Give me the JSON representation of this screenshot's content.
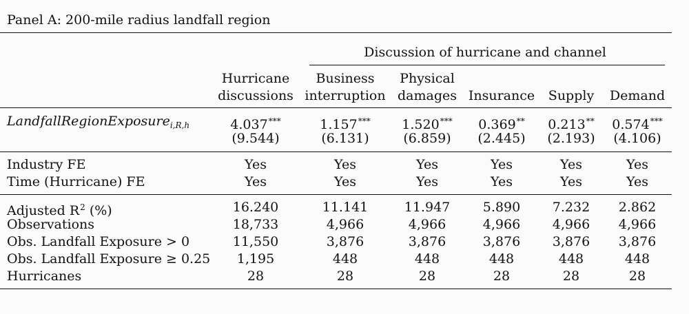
{
  "panel_title": "Panel A: 200-mile radius landfall region",
  "group_header": "Discussion of hurricane and channel",
  "columns": [
    {
      "line1": "Hurricane",
      "line2": "discussions"
    },
    {
      "line1": "Business",
      "line2": "interruption"
    },
    {
      "line1": "Physical",
      "line2": "damages"
    },
    {
      "line1": "",
      "line2": "Insurance"
    },
    {
      "line1": "",
      "line2": "Supply"
    },
    {
      "line1": "",
      "line2": "Demand"
    }
  ],
  "exposure_row": {
    "label_main": "LandfallRegionExposure",
    "label_sub": "i,R,h",
    "coefficients": [
      {
        "value": "4.037",
        "stars": "***"
      },
      {
        "value": "1.157",
        "stars": "***"
      },
      {
        "value": "1.520",
        "stars": "***"
      },
      {
        "value": "0.369",
        "stars": "**"
      },
      {
        "value": "0.213",
        "stars": "**"
      },
      {
        "value": "0.574",
        "stars": "***"
      }
    ],
    "tstats": [
      "(9.544)",
      "(6.131)",
      "(6.859)",
      "(2.445)",
      "(2.193)",
      "(4.106)"
    ]
  },
  "fe_rows": [
    {
      "label": "Industry FE",
      "values": [
        "Yes",
        "Yes",
        "Yes",
        "Yes",
        "Yes",
        "Yes"
      ]
    },
    {
      "label": "Time (Hurricane) FE",
      "values": [
        "Yes",
        "Yes",
        "Yes",
        "Yes",
        "Yes",
        "Yes"
      ]
    }
  ],
  "adj_r2": {
    "label_pre": "Adjusted R",
    "label_sup": "2",
    "label_post": " (%)",
    "values": [
      "16.240",
      "11.141",
      "11.947",
      "5.890",
      "7.232",
      "2.862"
    ]
  },
  "stat_rows": [
    {
      "label": "Observations",
      "values": [
        "18,733",
        "4,966",
        "4,966",
        "4,966",
        "4,966",
        "4,966"
      ]
    },
    {
      "label": "Obs. Landfall Exposure > 0",
      "values": [
        "11,550",
        "3,876",
        "3,876",
        "3,876",
        "3,876",
        "3,876"
      ]
    },
    {
      "label": "Obs. Landfall Exposure ≥ 0.25",
      "values": [
        "1,195",
        "448",
        "448",
        "448",
        "448",
        "448"
      ]
    },
    {
      "label": "Hurricanes",
      "values": [
        "28",
        "28",
        "28",
        "28",
        "28",
        "28"
      ]
    }
  ]
}
